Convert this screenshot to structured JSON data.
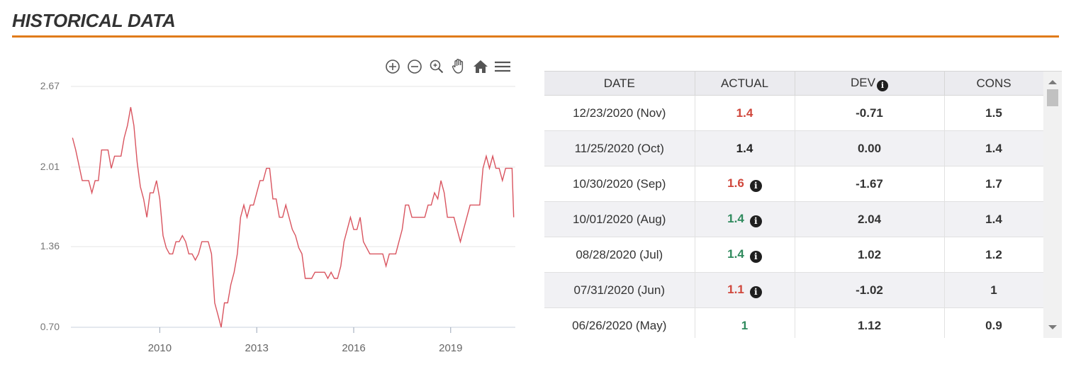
{
  "section": {
    "title": "HISTORICAL DATA"
  },
  "colors": {
    "accent": "#e07b1a",
    "line": "#d9545f",
    "up": "#2f8a5d",
    "down": "#d0473c"
  },
  "toolbar": {
    "icons": [
      "zoom-in-icon",
      "zoom-out-icon",
      "magnify-icon",
      "pan-hand-icon",
      "home-icon",
      "menu-icon"
    ]
  },
  "chart_data": {
    "type": "line",
    "title": "",
    "xlabel": "",
    "ylabel": "",
    "ylim": [
      0.7,
      2.67
    ],
    "yticks": [
      "2.67",
      "2.01",
      "1.36",
      "0.70"
    ],
    "xticks": [
      "2010",
      "2013",
      "2016",
      "2019"
    ],
    "xlim": [
      2007.25,
      2021.0
    ],
    "grid": true,
    "series": [
      {
        "values": [
          [
            2007.3,
            2.25
          ],
          [
            2007.4,
            2.15
          ],
          [
            2007.6,
            1.9
          ],
          [
            2007.8,
            1.9
          ],
          [
            2007.9,
            1.8
          ],
          [
            2008.0,
            1.9
          ],
          [
            2008.1,
            1.9
          ],
          [
            2008.2,
            2.15
          ],
          [
            2008.4,
            2.15
          ],
          [
            2008.5,
            2.0
          ],
          [
            2008.6,
            2.1
          ],
          [
            2008.8,
            2.1
          ],
          [
            2008.9,
            2.25
          ],
          [
            2009.0,
            2.35
          ],
          [
            2009.1,
            2.5
          ],
          [
            2009.2,
            2.35
          ],
          [
            2009.3,
            2.05
          ],
          [
            2009.4,
            1.85
          ],
          [
            2009.5,
            1.75
          ],
          [
            2009.6,
            1.6
          ],
          [
            2009.7,
            1.8
          ],
          [
            2009.8,
            1.8
          ],
          [
            2009.9,
            1.9
          ],
          [
            2010.0,
            1.75
          ],
          [
            2010.1,
            1.45
          ],
          [
            2010.2,
            1.35
          ],
          [
            2010.3,
            1.3
          ],
          [
            2010.4,
            1.3
          ],
          [
            2010.5,
            1.4
          ],
          [
            2010.6,
            1.4
          ],
          [
            2010.7,
            1.45
          ],
          [
            2010.8,
            1.4
          ],
          [
            2010.9,
            1.3
          ],
          [
            2011.0,
            1.3
          ],
          [
            2011.1,
            1.25
          ],
          [
            2011.2,
            1.3
          ],
          [
            2011.3,
            1.4
          ],
          [
            2011.4,
            1.4
          ],
          [
            2011.5,
            1.4
          ],
          [
            2011.6,
            1.3
          ],
          [
            2011.7,
            0.9
          ],
          [
            2011.8,
            0.8
          ],
          [
            2011.9,
            0.7
          ],
          [
            2012.0,
            0.9
          ],
          [
            2012.1,
            0.9
          ],
          [
            2012.2,
            1.05
          ],
          [
            2012.3,
            1.15
          ],
          [
            2012.4,
            1.3
          ],
          [
            2012.5,
            1.6
          ],
          [
            2012.6,
            1.7
          ],
          [
            2012.7,
            1.6
          ],
          [
            2012.8,
            1.7
          ],
          [
            2012.9,
            1.7
          ],
          [
            2013.0,
            1.8
          ],
          [
            2013.1,
            1.9
          ],
          [
            2013.2,
            1.9
          ],
          [
            2013.3,
            2.0
          ],
          [
            2013.4,
            2.0
          ],
          [
            2013.5,
            1.75
          ],
          [
            2013.6,
            1.75
          ],
          [
            2013.7,
            1.6
          ],
          [
            2013.8,
            1.6
          ],
          [
            2013.9,
            1.7
          ],
          [
            2014.0,
            1.6
          ],
          [
            2014.1,
            1.5
          ],
          [
            2014.2,
            1.45
          ],
          [
            2014.3,
            1.35
          ],
          [
            2014.4,
            1.3
          ],
          [
            2014.5,
            1.1
          ],
          [
            2014.6,
            1.1
          ],
          [
            2014.7,
            1.1
          ],
          [
            2014.8,
            1.15
          ],
          [
            2014.9,
            1.15
          ],
          [
            2015.0,
            1.15
          ],
          [
            2015.1,
            1.15
          ],
          [
            2015.2,
            1.1
          ],
          [
            2015.3,
            1.15
          ],
          [
            2015.4,
            1.1
          ],
          [
            2015.5,
            1.1
          ],
          [
            2015.6,
            1.2
          ],
          [
            2015.7,
            1.4
          ],
          [
            2015.8,
            1.5
          ],
          [
            2015.9,
            1.6
          ],
          [
            2016.0,
            1.5
          ],
          [
            2016.1,
            1.5
          ],
          [
            2016.2,
            1.6
          ],
          [
            2016.3,
            1.4
          ],
          [
            2016.4,
            1.35
          ],
          [
            2016.5,
            1.3
          ],
          [
            2016.6,
            1.3
          ],
          [
            2016.7,
            1.3
          ],
          [
            2016.8,
            1.3
          ],
          [
            2016.9,
            1.3
          ],
          [
            2017.0,
            1.2
          ],
          [
            2017.1,
            1.3
          ],
          [
            2017.2,
            1.3
          ],
          [
            2017.3,
            1.3
          ],
          [
            2017.4,
            1.4
          ],
          [
            2017.5,
            1.5
          ],
          [
            2017.6,
            1.7
          ],
          [
            2017.7,
            1.7
          ],
          [
            2017.8,
            1.6
          ],
          [
            2017.9,
            1.6
          ],
          [
            2018.0,
            1.6
          ],
          [
            2018.1,
            1.6
          ],
          [
            2018.2,
            1.6
          ],
          [
            2018.3,
            1.7
          ],
          [
            2018.4,
            1.7
          ],
          [
            2018.5,
            1.8
          ],
          [
            2018.6,
            1.75
          ],
          [
            2018.7,
            1.9
          ],
          [
            2018.8,
            1.8
          ],
          [
            2018.9,
            1.6
          ],
          [
            2019.0,
            1.6
          ],
          [
            2019.1,
            1.6
          ],
          [
            2019.2,
            1.5
          ],
          [
            2019.3,
            1.4
          ],
          [
            2019.4,
            1.5
          ],
          [
            2019.5,
            1.6
          ],
          [
            2019.6,
            1.7
          ],
          [
            2019.7,
            1.7
          ],
          [
            2019.8,
            1.7
          ],
          [
            2019.9,
            1.7
          ],
          [
            2020.0,
            2.0
          ],
          [
            2020.1,
            2.1
          ],
          [
            2020.2,
            2.0
          ],
          [
            2020.3,
            2.1
          ],
          [
            2020.4,
            2.0
          ],
          [
            2020.5,
            2.0
          ],
          [
            2020.6,
            1.9
          ],
          [
            2020.7,
            2.0
          ],
          [
            2020.8,
            2.0
          ],
          [
            2020.9,
            2.0
          ],
          [
            2020.95,
            1.6
          ]
        ]
      }
    ]
  },
  "table": {
    "headers": [
      "DATE",
      "ACTUAL",
      "DEV",
      "CONS"
    ],
    "rows": [
      {
        "date": "12/23/2020 (Nov)",
        "actual": "1.4",
        "actual_color": "red",
        "actual_info": false,
        "dev": "-0.71",
        "cons": "1.5"
      },
      {
        "date": "11/25/2020 (Oct)",
        "actual": "1.4",
        "actual_color": "black",
        "actual_info": false,
        "dev": "0.00",
        "cons": "1.4"
      },
      {
        "date": "10/30/2020 (Sep)",
        "actual": "1.6",
        "actual_color": "red",
        "actual_info": true,
        "dev": "-1.67",
        "cons": "1.7"
      },
      {
        "date": "10/01/2020 (Aug)",
        "actual": "1.4",
        "actual_color": "green",
        "actual_info": true,
        "dev": "2.04",
        "cons": "1.4"
      },
      {
        "date": "08/28/2020 (Jul)",
        "actual": "1.4",
        "actual_color": "green",
        "actual_info": true,
        "dev": "1.02",
        "cons": "1.2"
      },
      {
        "date": "07/31/2020 (Jun)",
        "actual": "1.1",
        "actual_color": "red",
        "actual_info": true,
        "dev": "-1.02",
        "cons": "1"
      },
      {
        "date": "06/26/2020 (May)",
        "actual": "1",
        "actual_color": "green",
        "actual_info": false,
        "dev": "1.12",
        "cons": "0.9"
      }
    ]
  }
}
